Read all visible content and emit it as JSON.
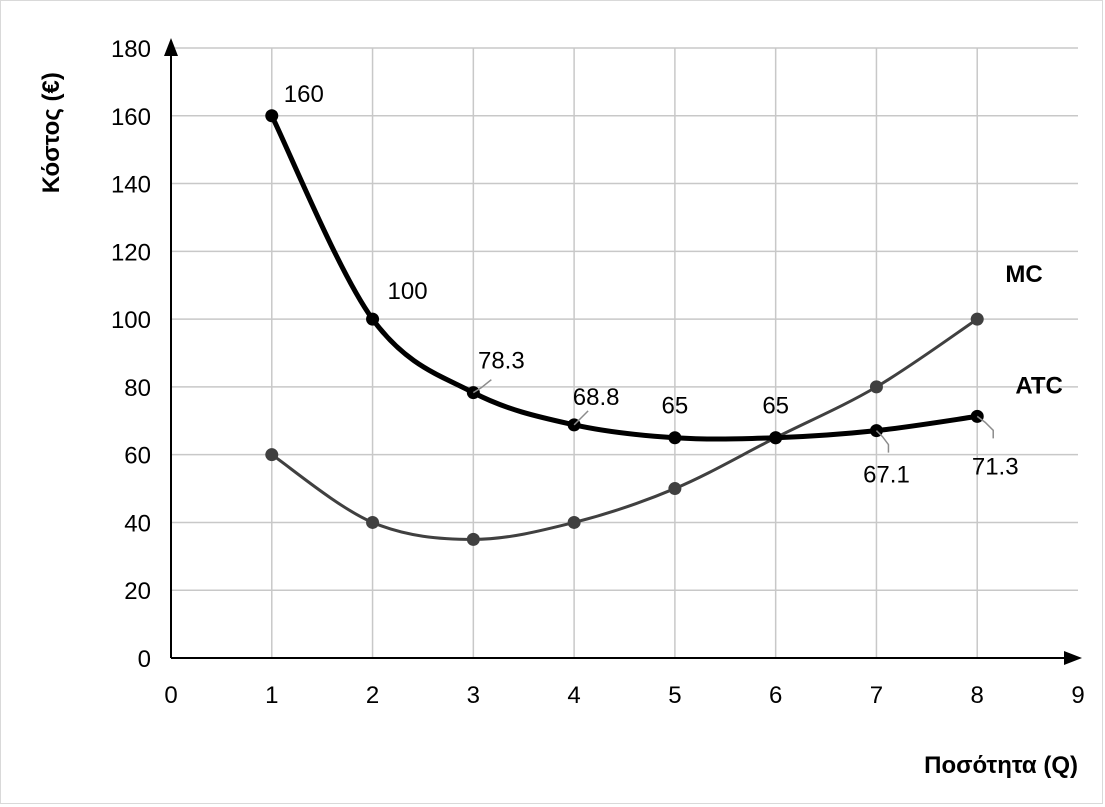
{
  "chart_data": {
    "type": "line",
    "xlabel": "Ποσότητα (Q)",
    "ylabel": "Κόστος (€)",
    "xlim": [
      0,
      9
    ],
    "ylim": [
      0,
      180
    ],
    "x_ticks": [
      "0",
      "1",
      "2",
      "3",
      "4",
      "5",
      "6",
      "7",
      "8",
      "9"
    ],
    "y_ticks": [
      "0",
      "20",
      "40",
      "60",
      "80",
      "100",
      "120",
      "140",
      "160",
      "180"
    ],
    "grid": true,
    "series": [
      {
        "name": "ATC",
        "x": [
          1,
          2,
          3,
          4,
          5,
          6,
          7,
          8
        ],
        "values": [
          160,
          100,
          78.3,
          68.8,
          65,
          65,
          67.1,
          71.3
        ],
        "labels": [
          "160",
          "100",
          "78.3",
          "68.8",
          "65",
          "65",
          "67.1",
          "71.3"
        ],
        "color": "#000000"
      },
      {
        "name": "MC",
        "x": [
          1,
          2,
          3,
          4,
          5,
          6,
          7,
          8
        ],
        "values": [
          60,
          40,
          35,
          40,
          50,
          65,
          80,
          100
        ],
        "color": "#404040"
      }
    ]
  }
}
